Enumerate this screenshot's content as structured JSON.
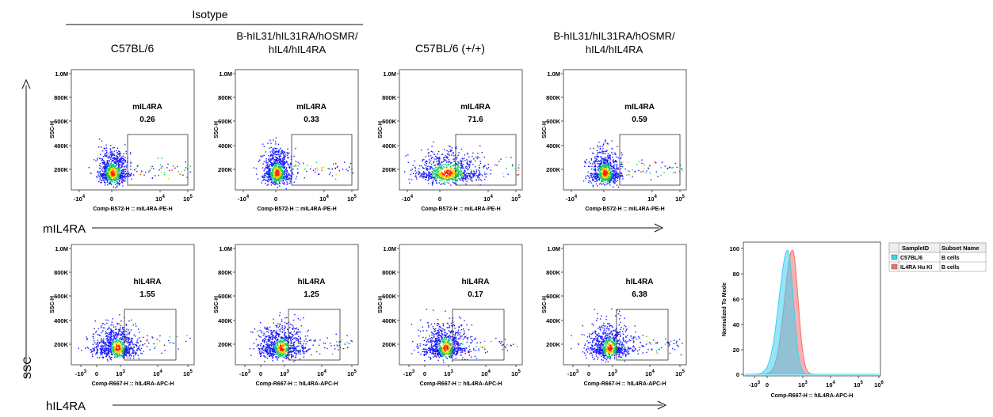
{
  "header": {
    "isotype_label": "Isotype",
    "col_labels": [
      [
        "C57BL/6"
      ],
      [
        "B-hIL31/hIL31RA/hOSMR/",
        "hIL4/hIL4RA"
      ],
      [
        "C57BL/6 (+/+)"
      ],
      [
        "B-hIL31/hIL31RA/hOSMR/",
        "hIL4/hIL4RA"
      ]
    ]
  },
  "side": {
    "ssc_label": "SSC",
    "row1_axis_label": "mIL4RA",
    "row2_axis_label": "hIL4RA"
  },
  "colors": {
    "dot_low": "#1a1aff",
    "dot_mid": "#00cc66",
    "dot_hot": "#ffcc00",
    "dot_core": "#ff2200",
    "hist_c57": "#3fd0f0",
    "hist_ki": "#f07070"
  },
  "chart_data": [
    {
      "type": "scatter",
      "row": "mIL4RA",
      "ylabel": "SSC-H",
      "xlabel": "Comp-B572-H :: mIL4RA-PE-H",
      "y_ticks": [
        "1.0M",
        "800K",
        "600K",
        "400K",
        "200K"
      ],
      "x_ticks": [
        "-10^4",
        "0",
        "10^4",
        "10^5"
      ],
      "ylim": [
        0,
        1000000
      ],
      "panels": [
        {
          "sample": "C57BL/6 Isotype",
          "gate_label": "mIL4RA",
          "percent": "0.26",
          "center_x": 0.1,
          "center_y": 150000,
          "spread": "narrow"
        },
        {
          "sample": "B-hIL31/hIL31RA/hOSMR/hIL4/hIL4RA Isotype",
          "gate_label": "mIL4RA",
          "percent": "0.33",
          "center_x": 0.1,
          "center_y": 150000,
          "spread": "narrow"
        },
        {
          "sample": "C57BL/6 (+/+)",
          "gate_label": "mIL4RA",
          "percent": "71.6",
          "center_x": 0.45,
          "center_y": 150000,
          "spread": "wide"
        },
        {
          "sample": "B-hIL31/hIL31RA/hOSMR/hIL4/hIL4RA",
          "gate_label": "mIL4RA",
          "percent": "0.59",
          "center_x": 0.1,
          "center_y": 150000,
          "spread": "narrow"
        }
      ]
    },
    {
      "type": "scatter",
      "row": "hIL4RA",
      "ylabel": "SSC-H",
      "xlabel": "Comp-R667-H :: hIL4RA-APC-H",
      "y_ticks": [
        "1.0M",
        "800K",
        "600K",
        "400K",
        "200K"
      ],
      "x_ticks": [
        "-10^3",
        "0",
        "10^3",
        "10^4",
        "10^5"
      ],
      "ylim": [
        0,
        1000000
      ],
      "panels": [
        {
          "sample": "C57BL/6 Isotype",
          "gate_label": "hIL4RA",
          "percent": "1.55"
        },
        {
          "sample": "B-hIL31/hIL31RA/hOSMR/hIL4/hIL4RA Isotype",
          "gate_label": "hIL4RA",
          "percent": "1.25"
        },
        {
          "sample": "C57BL/6 (+/+)",
          "gate_label": "hIL4RA",
          "percent": "0.17"
        },
        {
          "sample": "B-hIL31/hIL31RA/hOSMR/hIL4/hIL4RA",
          "gate_label": "hIL4RA",
          "percent": "6.38"
        }
      ]
    },
    {
      "type": "area",
      "ylabel": "Normalized To Mode",
      "xlabel": "Comp-R667-H :: hIL4RA-APC-H",
      "y_ticks": [
        "100",
        "80",
        "60",
        "40",
        "20",
        "0"
      ],
      "x_ticks": [
        "-10^3",
        "0",
        "10^3",
        "10^4",
        "10^5",
        "10^6"
      ],
      "ylim": [
        0,
        100
      ],
      "legend": {
        "headers": [
          "SampleID",
          "Subset Name"
        ],
        "rows": [
          {
            "sample": "C57BL/6",
            "subset": "B cells",
            "color": "#3fd0f0"
          },
          {
            "sample": "IL4RA Hu KI",
            "subset": "B cells",
            "color": "#f07070"
          }
        ]
      },
      "series": [
        {
          "name": "C57BL/6",
          "peak_x_log": 2.6,
          "peak_y": 100
        },
        {
          "name": "IL4RA Hu KI",
          "peak_x_log": 2.9,
          "peak_y": 100
        }
      ]
    }
  ]
}
